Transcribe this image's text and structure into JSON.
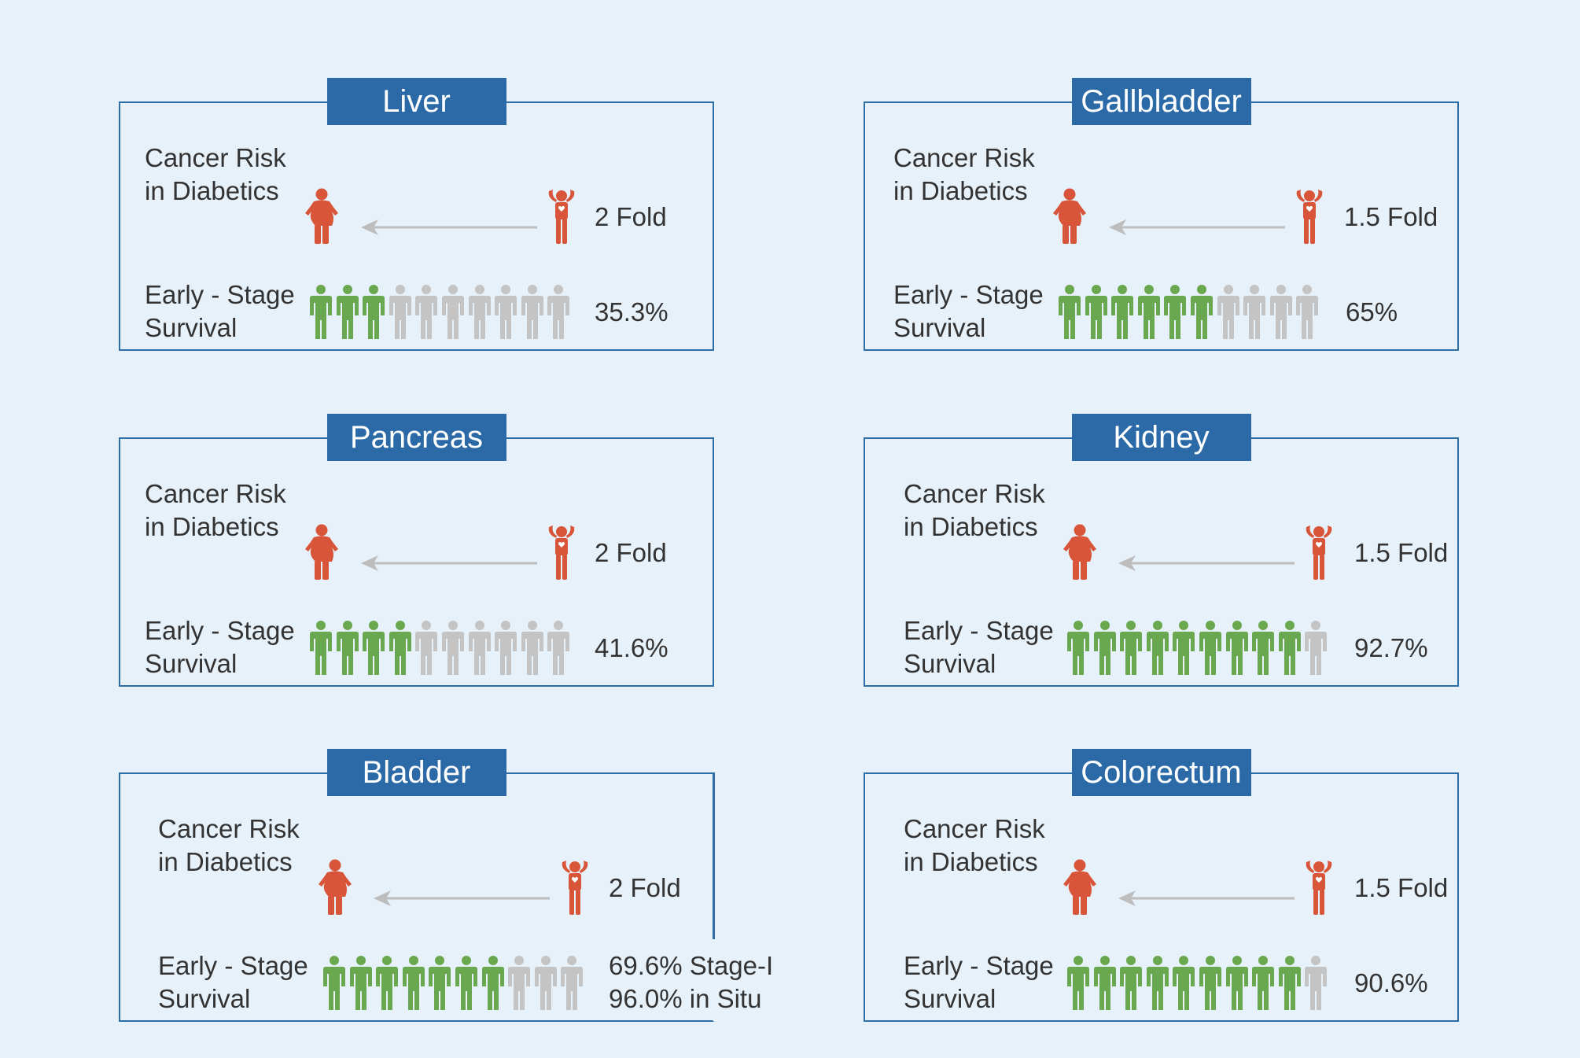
{
  "colors": {
    "risk": "#d9553a",
    "survived": "#6aa84f",
    "not_survived": "#c4c4c4",
    "header": "#2b6aa7",
    "border": "#2e6ea6",
    "background": "#e7f1fa"
  },
  "labels": {
    "risk_line1": "Cancer Risk",
    "risk_line2": "in Diabetics",
    "survival_line1": "Early - Stage",
    "survival_line2": "Survival"
  },
  "panels": [
    {
      "title": "Liver",
      "risk": "2 Fold",
      "survival_line1": "35.3%",
      "survival_line2": "",
      "survived_count": 3,
      "total_count": 10
    },
    {
      "title": "Gallbladder",
      "risk": "1.5 Fold",
      "survival_line1": "65%",
      "survival_line2": "",
      "survived_count": 6,
      "total_count": 10
    },
    {
      "title": "Pancreas",
      "risk": "2 Fold",
      "survival_line1": "41.6%",
      "survival_line2": "",
      "survived_count": 4,
      "total_count": 10
    },
    {
      "title": "Kidney",
      "risk": "1.5 Fold",
      "survival_line1": "92.7%",
      "survival_line2": "",
      "survived_count": 9,
      "total_count": 10
    },
    {
      "title": "Bladder",
      "risk": "2 Fold",
      "survival_line1": "69.6% Stage-I",
      "survival_line2": "96.0% in Situ",
      "survived_count": 7,
      "total_count": 10
    },
    {
      "title": "Colorectum",
      "risk": "1.5 Fold",
      "survival_line1": "90.6%",
      "survival_line2": "",
      "survived_count": 9,
      "total_count": 10
    }
  ]
}
